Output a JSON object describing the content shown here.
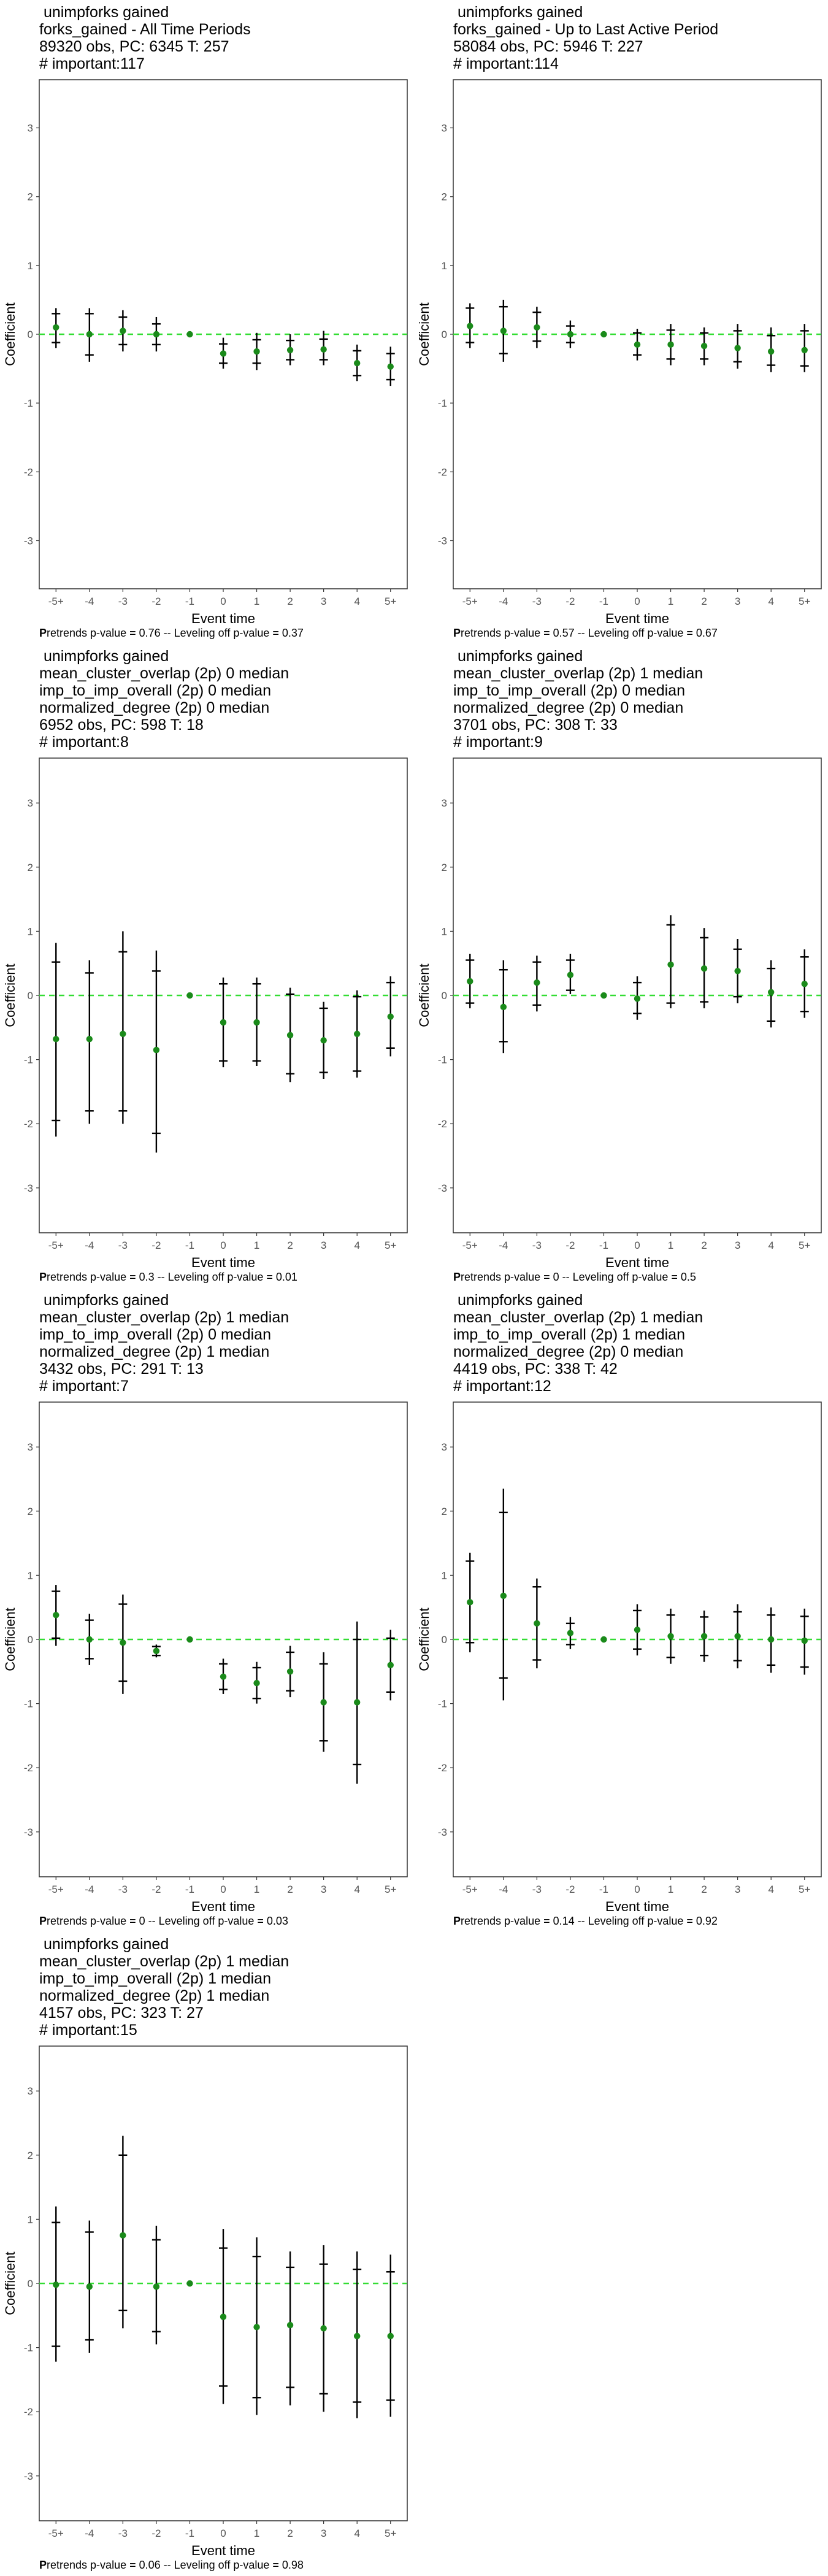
{
  "chart_data": [
    {
      "type": "scatter",
      "title_lines": [
        " unimpforks gained",
        "forks_gained - All Time Periods",
        "89320 obs, PC: 6345 T: 257",
        "# important:117"
      ],
      "xlabel": "Event time",
      "ylabel": "Coefficient",
      "ylim": [
        -3.7,
        3.7
      ],
      "yticks": [
        3,
        2,
        1,
        0,
        -1,
        -2,
        -3
      ],
      "categories": [
        "-5+",
        "-4",
        "-3",
        "-2",
        "-1",
        "0",
        "1",
        "2",
        "3",
        "4",
        "5+"
      ],
      "estimates": [
        0.1,
        0.0,
        0.05,
        0.0,
        0.0,
        -0.28,
        -0.25,
        -0.23,
        -0.22,
        -0.42,
        -0.47
      ],
      "ci_outer_low": [
        -0.2,
        -0.4,
        -0.25,
        -0.25,
        0.0,
        -0.5,
        -0.52,
        -0.45,
        -0.45,
        -0.68,
        -0.75
      ],
      "ci_outer_high": [
        0.38,
        0.38,
        0.35,
        0.25,
        0.0,
        -0.05,
        0.02,
        0.0,
        0.05,
        -0.15,
        -0.18
      ],
      "ci_inner_low": [
        -0.12,
        -0.3,
        -0.15,
        -0.15,
        0.0,
        -0.42,
        -0.42,
        -0.37,
        -0.37,
        -0.6,
        -0.66
      ],
      "ci_inner_high": [
        0.3,
        0.3,
        0.25,
        0.15,
        0.0,
        -0.14,
        -0.08,
        -0.09,
        -0.07,
        -0.24,
        -0.28
      ],
      "footer_bold": "P",
      "footer": "retrends p-value = 0.76 -- Leveling off p-value = 0.37"
    },
    {
      "type": "scatter",
      "title_lines": [
        " unimpforks gained",
        "forks_gained - Up to Last Active Period",
        "58084 obs, PC: 5946 T: 227",
        "# important:114"
      ],
      "xlabel": "Event time",
      "ylabel": "Coefficient",
      "ylim": [
        -3.7,
        3.7
      ],
      "yticks": [
        3,
        2,
        1,
        0,
        -1,
        -2,
        -3
      ],
      "categories": [
        "-5+",
        "-4",
        "-3",
        "-2",
        "-1",
        "0",
        "1",
        "2",
        "3",
        "4",
        "5+"
      ],
      "estimates": [
        0.12,
        0.05,
        0.1,
        0.0,
        0.0,
        -0.15,
        -0.15,
        -0.17,
        -0.2,
        -0.25,
        -0.23
      ],
      "ci_outer_low": [
        -0.2,
        -0.4,
        -0.2,
        -0.2,
        0.0,
        -0.38,
        -0.45,
        -0.45,
        -0.5,
        -0.55,
        -0.55
      ],
      "ci_outer_high": [
        0.45,
        0.5,
        0.4,
        0.2,
        0.0,
        0.08,
        0.15,
        0.1,
        0.15,
        0.1,
        0.15
      ],
      "ci_inner_low": [
        -0.12,
        -0.28,
        -0.1,
        -0.12,
        0.0,
        -0.3,
        -0.36,
        -0.36,
        -0.4,
        -0.45,
        -0.46
      ],
      "ci_inner_high": [
        0.38,
        0.4,
        0.32,
        0.12,
        0.0,
        0.02,
        0.06,
        0.02,
        0.05,
        -0.02,
        0.05
      ],
      "footer_bold": "P",
      "footer": "retrends p-value = 0.57 -- Leveling off p-value = 0.67"
    },
    {
      "type": "scatter",
      "title_lines": [
        " unimpforks gained",
        "mean_cluster_overlap (2p) 0 median",
        "imp_to_imp_overall (2p) 0 median",
        "normalized_degree (2p) 0 median",
        "6952 obs, PC: 598 T: 18",
        "# important:8"
      ],
      "xlabel": "Event time",
      "ylabel": "Coefficient",
      "ylim": [
        -3.7,
        3.7
      ],
      "yticks": [
        3,
        2,
        1,
        0,
        -1,
        -2,
        -3
      ],
      "categories": [
        "-5+",
        "-4",
        "-3",
        "-2",
        "-1",
        "0",
        "1",
        "2",
        "3",
        "4",
        "5+"
      ],
      "estimates": [
        -0.68,
        -0.68,
        -0.6,
        -0.85,
        0.0,
        -0.42,
        -0.42,
        -0.62,
        -0.7,
        -0.6,
        -0.33
      ],
      "ci_outer_low": [
        -2.2,
        -2.0,
        -2.0,
        -2.45,
        0.0,
        -1.12,
        -1.1,
        -1.35,
        -1.3,
        -1.28,
        -0.95
      ],
      "ci_outer_high": [
        0.82,
        0.55,
        1.0,
        0.7,
        0.0,
        0.28,
        0.28,
        0.12,
        -0.1,
        0.08,
        0.3
      ],
      "ci_inner_low": [
        -1.95,
        -1.8,
        -1.8,
        -2.15,
        0.0,
        -1.02,
        -1.02,
        -1.22,
        -1.2,
        -1.18,
        -0.82
      ],
      "ci_inner_high": [
        0.52,
        0.35,
        0.68,
        0.38,
        0.0,
        0.18,
        0.18,
        0.02,
        -0.2,
        -0.02,
        0.2
      ],
      "footer_bold": "P",
      "footer": "retrends p-value = 0.3 -- Leveling off p-value = 0.01"
    },
    {
      "type": "scatter",
      "title_lines": [
        " unimpforks gained",
        "mean_cluster_overlap (2p) 1 median",
        "imp_to_imp_overall (2p) 0 median",
        "normalized_degree (2p) 0 median",
        "3701 obs, PC: 308 T: 33",
        "# important:9"
      ],
      "xlabel": "Event time",
      "ylabel": "Coefficient",
      "ylim": [
        -3.7,
        3.7
      ],
      "yticks": [
        3,
        2,
        1,
        0,
        -1,
        -2,
        -3
      ],
      "categories": [
        "-5+",
        "-4",
        "-3",
        "-2",
        "-1",
        "0",
        "1",
        "2",
        "3",
        "4",
        "5+"
      ],
      "estimates": [
        0.22,
        -0.18,
        0.2,
        0.32,
        0.0,
        -0.05,
        0.48,
        0.42,
        0.38,
        0.05,
        0.18
      ],
      "ci_outer_low": [
        -0.2,
        -0.9,
        -0.25,
        0.02,
        0.0,
        -0.38,
        -0.2,
        -0.2,
        -0.12,
        -0.5,
        -0.35
      ],
      "ci_outer_high": [
        0.65,
        0.55,
        0.62,
        0.65,
        0.0,
        0.3,
        1.25,
        1.05,
        0.88,
        0.55,
        0.72
      ],
      "ci_inner_low": [
        -0.12,
        -0.72,
        -0.15,
        0.08,
        0.0,
        -0.28,
        -0.12,
        -0.1,
        -0.02,
        -0.4,
        -0.25
      ],
      "ci_inner_high": [
        0.55,
        0.4,
        0.52,
        0.55,
        0.0,
        0.2,
        1.1,
        0.9,
        0.72,
        0.42,
        0.6
      ],
      "footer_bold": "P",
      "footer": "retrends p-value = 0 -- Leveling off p-value = 0.5"
    },
    {
      "type": "scatter",
      "title_lines": [
        " unimpforks gained",
        "mean_cluster_overlap (2p) 1 median",
        "imp_to_imp_overall (2p) 0 median",
        "normalized_degree (2p) 1 median",
        "3432 obs, PC: 291 T: 13",
        "# important:7"
      ],
      "xlabel": "Event time",
      "ylabel": "Coefficient",
      "ylim": [
        -3.7,
        3.7
      ],
      "yticks": [
        3,
        2,
        1,
        0,
        -1,
        -2,
        -3
      ],
      "categories": [
        "-5+",
        "-4",
        "-3",
        "-2",
        "-1",
        "0",
        "1",
        "2",
        "3",
        "4",
        "5+"
      ],
      "estimates": [
        0.38,
        0.0,
        -0.05,
        -0.18,
        0.0,
        -0.58,
        -0.68,
        -0.5,
        -0.98,
        -0.98,
        -0.4
      ],
      "ci_outer_low": [
        -0.1,
        -0.4,
        -0.85,
        -0.28,
        0.0,
        -0.85,
        -1.0,
        -0.9,
        -1.75,
        -2.25,
        -0.95
      ],
      "ci_outer_high": [
        0.85,
        0.4,
        0.7,
        -0.08,
        0.0,
        -0.3,
        -0.35,
        -0.1,
        -0.2,
        0.28,
        0.15
      ],
      "ci_inner_low": [
        0.02,
        -0.3,
        -0.65,
        -0.25,
        0.0,
        -0.78,
        -0.92,
        -0.8,
        -1.58,
        -1.95,
        -0.82
      ],
      "ci_inner_high": [
        0.75,
        0.3,
        0.55,
        -0.11,
        0.0,
        -0.38,
        -0.44,
        -0.2,
        -0.38,
        0.0,
        0.02
      ],
      "footer_bold": "P",
      "footer": "retrends p-value = 0 -- Leveling off p-value = 0.03"
    },
    {
      "type": "scatter",
      "title_lines": [
        " unimpforks gained",
        "mean_cluster_overlap (2p) 1 median",
        "imp_to_imp_overall (2p) 1 median",
        "normalized_degree (2p) 0 median",
        "4419 obs, PC: 338 T: 42",
        "# important:12"
      ],
      "xlabel": "Event time",
      "ylabel": "Coefficient",
      "ylim": [
        -3.7,
        3.7
      ],
      "yticks": [
        3,
        2,
        1,
        0,
        -1,
        -2,
        -3
      ],
      "categories": [
        "-5+",
        "-4",
        "-3",
        "-2",
        "-1",
        "0",
        "1",
        "2",
        "3",
        "4",
        "5+"
      ],
      "estimates": [
        0.58,
        0.68,
        0.25,
        0.1,
        0.0,
        0.15,
        0.05,
        0.05,
        0.05,
        0.0,
        -0.02
      ],
      "ci_outer_low": [
        -0.2,
        -0.95,
        -0.45,
        -0.15,
        0.0,
        -0.25,
        -0.38,
        -0.35,
        -0.45,
        -0.52,
        -0.55
      ],
      "ci_outer_high": [
        1.35,
        2.35,
        0.95,
        0.35,
        0.0,
        0.55,
        0.48,
        0.45,
        0.55,
        0.5,
        0.48
      ],
      "ci_inner_low": [
        -0.05,
        -0.6,
        -0.32,
        -0.08,
        0.0,
        -0.15,
        -0.28,
        -0.25,
        -0.33,
        -0.4,
        -0.43
      ],
      "ci_inner_high": [
        1.22,
        1.98,
        0.82,
        0.25,
        0.0,
        0.45,
        0.38,
        0.35,
        0.43,
        0.38,
        0.36
      ],
      "footer_bold": "P",
      "footer": "retrends p-value = 0.14 -- Leveling off p-value = 0.92"
    },
    {
      "type": "scatter",
      "title_lines": [
        " unimpforks gained",
        "mean_cluster_overlap (2p) 1 median",
        "imp_to_imp_overall (2p) 1 median",
        "normalized_degree (2p) 1 median",
        "4157 obs, PC: 323 T: 27",
        "# important:15"
      ],
      "xlabel": "Event time",
      "ylabel": "Coefficient",
      "ylim": [
        -3.7,
        3.7
      ],
      "yticks": [
        3,
        2,
        1,
        0,
        -1,
        -2,
        -3
      ],
      "categories": [
        "-5+",
        "-4",
        "-3",
        "-2",
        "-1",
        "0",
        "1",
        "2",
        "3",
        "4",
        "5+"
      ],
      "estimates": [
        -0.02,
        -0.05,
        0.75,
        -0.05,
        0.0,
        -0.52,
        -0.68,
        -0.65,
        -0.7,
        -0.82,
        -0.82
      ],
      "ci_outer_low": [
        -1.22,
        -1.08,
        -0.7,
        -0.95,
        0.0,
        -1.88,
        -2.05,
        -1.9,
        -2.0,
        -2.1,
        -2.08
      ],
      "ci_outer_high": [
        1.2,
        0.98,
        2.3,
        0.9,
        0.0,
        0.85,
        0.72,
        0.5,
        0.6,
        0.5,
        0.45
      ],
      "ci_inner_low": [
        -0.98,
        -0.88,
        -0.42,
        -0.75,
        0.0,
        -1.6,
        -1.78,
        -1.62,
        -1.72,
        -1.85,
        -1.82
      ],
      "ci_inner_high": [
        0.95,
        0.8,
        2.0,
        0.68,
        0.0,
        0.55,
        0.42,
        0.25,
        0.3,
        0.22,
        0.18
      ],
      "footer_bold": "P",
      "footer": "retrends p-value = 0.06 -- Leveling off p-value = 0.98"
    }
  ],
  "colors": {
    "point": "#1a8a1a",
    "ci": "#000000",
    "zero_line": "#33dd33",
    "frame": "#333333",
    "tick_label": "#555555"
  }
}
